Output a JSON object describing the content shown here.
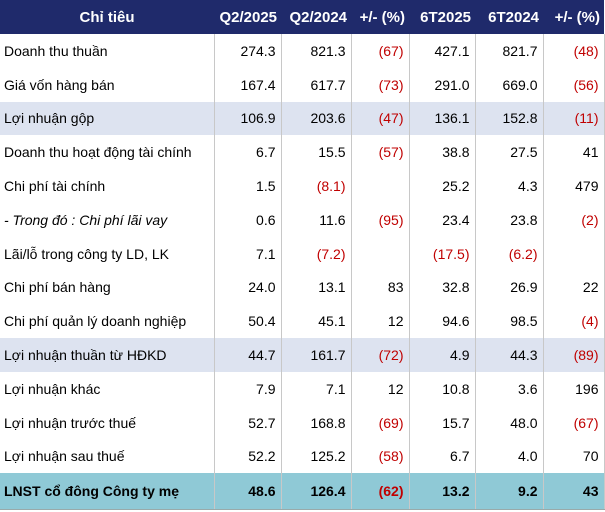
{
  "headers": [
    "Chỉ tiêu",
    "Q2/2025",
    "Q2/2024",
    "+/- (%)",
    "6T2025",
    "6T2024",
    "+/- (%)"
  ],
  "rows": [
    {
      "label": "Doanh thu thuần",
      "cells": [
        "274.3",
        "821.3",
        "(67)",
        "427.1",
        "821.7",
        "(48)"
      ],
      "style": "normal"
    },
    {
      "label": "Giá vốn hàng bán",
      "cells": [
        "167.4",
        "617.7",
        "(73)",
        "291.0",
        "669.0",
        "(56)"
      ],
      "style": "normal"
    },
    {
      "label": "Lợi nhuận gộp",
      "cells": [
        "106.9",
        "203.6",
        "(47)",
        "136.1",
        "152.8",
        "(11)"
      ],
      "style": "highlight"
    },
    {
      "label": "Doanh thu hoạt động tài chính",
      "cells": [
        "6.7",
        "15.5",
        "(57)",
        "38.8",
        "27.5",
        "41"
      ],
      "style": "normal"
    },
    {
      "label": "Chi phí tài chính",
      "cells": [
        "1.5",
        "(8.1)",
        "",
        "25.2",
        "4.3",
        "479"
      ],
      "style": "normal"
    },
    {
      "label": "- Trong đó : Chi phí lãi vay",
      "cells": [
        "0.6",
        "11.6",
        "(95)",
        "23.4",
        "23.8",
        "(2)"
      ],
      "style": "italic"
    },
    {
      "label": "Lãi/lỗ trong công ty LD, LK",
      "cells": [
        "7.1",
        "(7.2)",
        "",
        "(17.5)",
        "(6.2)",
        ""
      ],
      "style": "normal"
    },
    {
      "label": "Chi phí bán hàng",
      "cells": [
        "24.0",
        "13.1",
        "83",
        "32.8",
        "26.9",
        "22"
      ],
      "style": "normal"
    },
    {
      "label": "Chi phí quản lý doanh nghiệp",
      "cells": [
        "50.4",
        "45.1",
        "12",
        "94.6",
        "98.5",
        "(4)"
      ],
      "style": "normal"
    },
    {
      "label": "Lợi nhuận thuần từ HĐKD",
      "cells": [
        "44.7",
        "161.7",
        "(72)",
        "4.9",
        "44.3",
        "(89)"
      ],
      "style": "highlight"
    },
    {
      "label": "Lợi nhuận khác",
      "cells": [
        "7.9",
        "7.1",
        "12",
        "10.8",
        "3.6",
        "196"
      ],
      "style": "normal"
    },
    {
      "label": "Lợi nhuận trước thuế",
      "cells": [
        "52.7",
        "168.8",
        "(69)",
        "15.7",
        "48.0",
        "(67)"
      ],
      "style": "normal"
    },
    {
      "label": "Lợi nhuận sau thuế",
      "cells": [
        "52.2",
        "125.2",
        "(58)",
        "6.7",
        "4.0",
        "70"
      ],
      "style": "normal"
    },
    {
      "label": "LNST cổ đông Công ty mẹ",
      "cells": [
        "48.6",
        "126.4",
        "(62)",
        "13.2",
        "9.2",
        "43"
      ],
      "style": "total"
    }
  ],
  "colors": {
    "header_bg": "#1f2a6b",
    "highlight_bg": "#dde3f0",
    "total_bg": "#8fc9d6",
    "negative_text": "#c00000"
  }
}
